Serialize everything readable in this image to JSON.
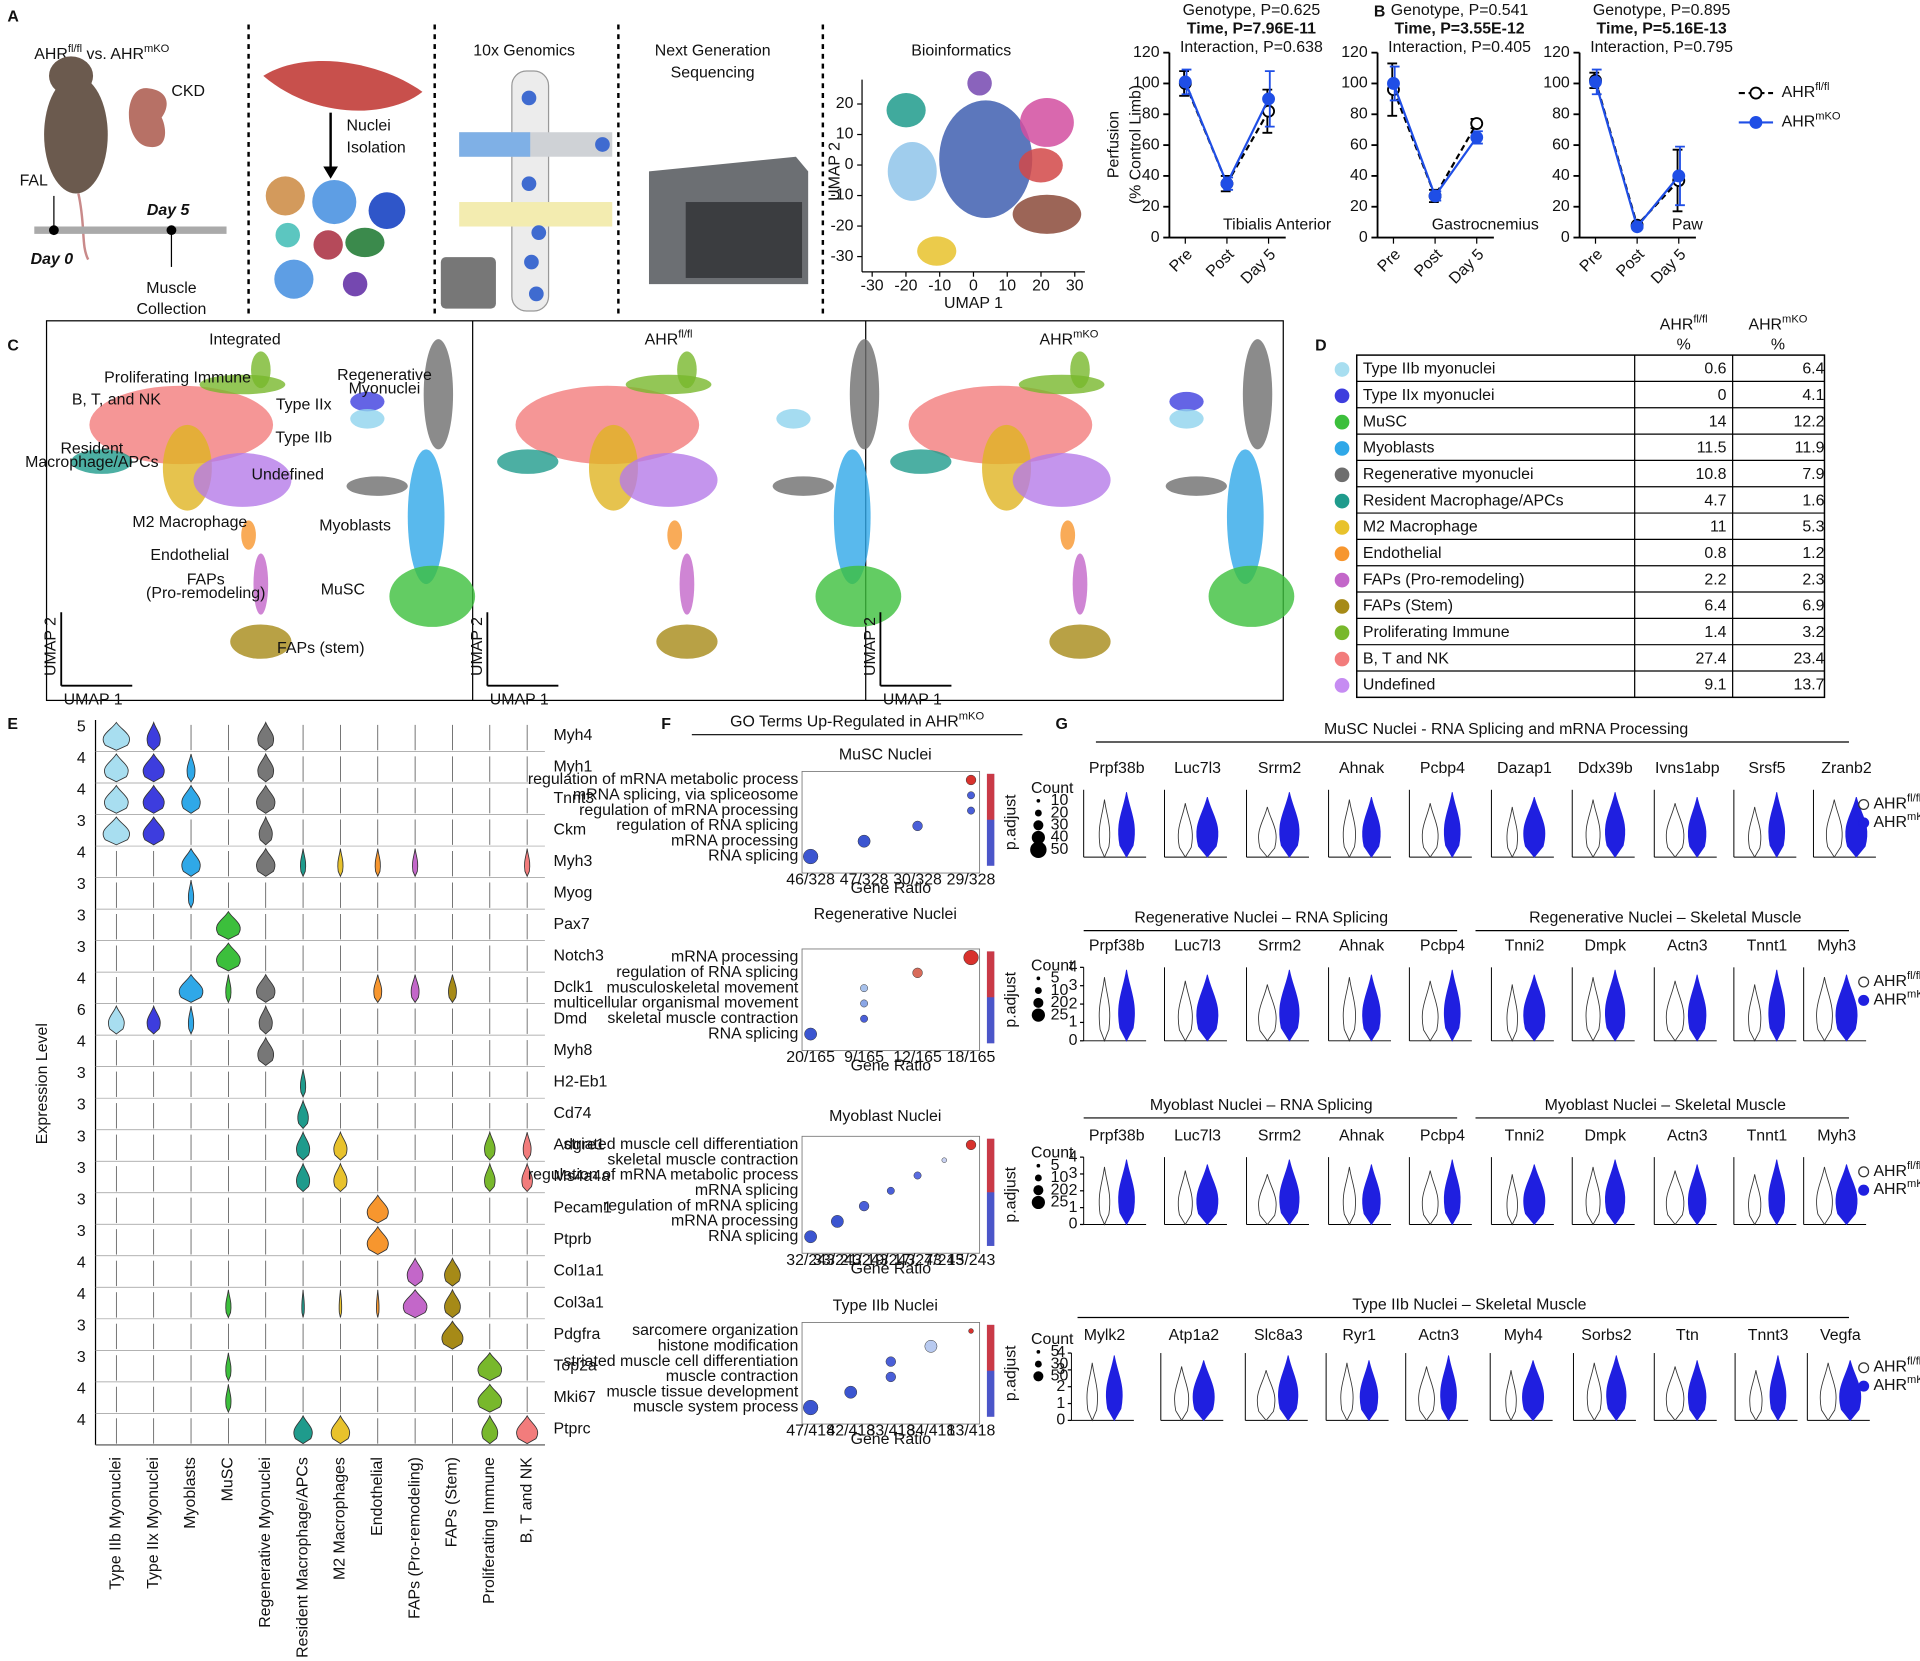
{
  "panel_labels": [
    "A",
    "B",
    "C",
    "D",
    "E",
    "F",
    "G"
  ],
  "panel_a": {
    "title": "AHRfl/fl vs. AHRmKO",
    "ckd": "CKD",
    "fal": "FAL",
    "day5": "Day 5",
    "day0": "Day 0",
    "collection": [
      "Muscle",
      "Collection"
    ],
    "isolation": [
      "Nuclei",
      "Isolation"
    ],
    "genomics": "10x Genomics",
    "sequencing": [
      "Next Generation",
      "Sequencing"
    ],
    "bioinformatics": "Bioinformatics",
    "umap": {
      "x_label": "UMAP 1",
      "y_label": "UMAP 2",
      "xlim": [
        -33,
        33
      ],
      "xticks": [
        -30,
        -20,
        -10,
        0,
        10,
        20,
        30
      ],
      "ylim": [
        -35,
        28
      ],
      "yticks": [
        -30,
        -20,
        -10,
        0,
        10,
        20
      ]
    }
  },
  "chart_data": [
    {
      "type": "line",
      "title": [
        "Genotype, P=0.625",
        "Time, P=7.96E-11",
        "Interaction, P=0.638"
      ],
      "y_label": [
        "Perfusion",
        "(% Control Limb)"
      ],
      "annotation": "Tibialis Anterior",
      "categories": [
        "Pre",
        "Post",
        "Day 5"
      ],
      "ylim": [
        0,
        120
      ],
      "yticks": [
        0,
        20,
        40,
        60,
        80,
        100,
        120
      ],
      "series": [
        {
          "color": "#000000",
          "line_style": "dashed",
          "values": [
            100,
            35,
            82
          ],
          "errors": [
            8,
            5,
            14
          ]
        },
        {
          "color": "#1f4ee6",
          "line_style": "solid",
          "values": [
            101,
            35,
            90
          ],
          "errors": [
            8,
            4,
            18
          ]
        }
      ]
    },
    {
      "type": "line",
      "title": [
        "Genotype, P=0.541",
        "Time, P=3.55E-12",
        "Interaction, P=0.405"
      ],
      "annotation": "Gastrocnemius",
      "categories": [
        "Pre",
        "Post",
        "Day 5"
      ],
      "ylim": [
        0,
        120
      ],
      "yticks": [
        0,
        20,
        40,
        60,
        80,
        100,
        120
      ],
      "series": [
        {
          "color": "#000000",
          "line_style": "dashed",
          "values": [
            96,
            27,
            74
          ],
          "errors": [
            17,
            4,
            3
          ]
        },
        {
          "color": "#1f4ee6",
          "line_style": "solid",
          "values": [
            100,
            27,
            65
          ],
          "errors": [
            11,
            3,
            4
          ]
        }
      ]
    },
    {
      "type": "line",
      "title": [
        "Genotype, P=0.895",
        "Time, P=5.16E-13",
        "Interaction, P=0.795"
      ],
      "annotation": "Paw",
      "categories": [
        "Pre",
        "Post",
        "Day 5"
      ],
      "ylim": [
        0,
        120
      ],
      "yticks": [
        0,
        20,
        40,
        60,
        80,
        100,
        120
      ],
      "legend": "right",
      "series": [
        {
          "name": "AHRfl/fl",
          "color": "#000000",
          "line_style": "dashed",
          "values": [
            102,
            8,
            37
          ],
          "errors": [
            5,
            1,
            20
          ]
        },
        {
          "name": "AHRmKO",
          "color": "#1f4ee6",
          "line_style": "solid",
          "values": [
            101,
            7,
            40
          ],
          "errors": [
            8,
            1,
            19
          ]
        }
      ]
    }
  ],
  "panel_c": {
    "titles": [
      "Integrated",
      "AHRfl/fl",
      "AHRmKO"
    ],
    "x_label": "UMAP 1",
    "y_label": "UMAP 2",
    "clusters": [
      {
        "lines": [
          "Proliferating Immune"
        ],
        "color": "#78b82c"
      },
      {
        "lines": [
          "B, T, and NK"
        ],
        "color": "#f27c7c"
      },
      {
        "lines": [
          "Type IIx"
        ],
        "color": "#3d3dde"
      },
      {
        "lines": [
          "Type IIb"
        ],
        "color": "#8fd3ee"
      },
      {
        "lines": [
          "Regenerative",
          "Myonuclei"
        ],
        "color": "#6e6e6e"
      },
      {
        "lines": [
          "Resident",
          "Macrophage/APCs"
        ],
        "color": "#1f9b8c"
      },
      {
        "lines": [
          "M2 Macrophage"
        ],
        "color": "#e0b422"
      },
      {
        "lines": [
          "Undefined"
        ],
        "color": "#b57ae8"
      },
      {
        "lines": [
          "Myoblasts"
        ],
        "color": "#2fa8e8"
      },
      {
        "lines": [
          "Endothelial"
        ],
        "color": "#f7962e"
      },
      {
        "lines": [
          "FAPs",
          "(Pro-remodeling)"
        ],
        "color": "#c367c9"
      },
      {
        "lines": [
          "MuSC"
        ],
        "color": "#3cbf3c"
      },
      {
        "lines": [
          "FAPs (stem)"
        ],
        "color": "#a68a17"
      }
    ]
  },
  "table_d": {
    "columns": [
      {
        "name": "AHRfl/fl",
        "unit": "%"
      },
      {
        "name": "AHRmKO",
        "unit": "%"
      }
    ],
    "rows": [
      {
        "label": "Type IIb myonuclei",
        "color": "#a8def0",
        "values": [
          0.6,
          6.4
        ]
      },
      {
        "label": "Type IIx myonuclei",
        "color": "#3d3dde",
        "values": [
          0,
          4.1
        ]
      },
      {
        "label": "MuSC",
        "color": "#3cbf3c",
        "values": [
          14,
          12.2
        ]
      },
      {
        "label": "Myoblasts",
        "color": "#2fa8e8",
        "values": [
          11.5,
          11.9
        ]
      },
      {
        "label": "Regenerative myonuclei",
        "color": "#6e6e6e",
        "values": [
          10.8,
          7.9
        ]
      },
      {
        "label": "Resident Macrophage/APCs",
        "color": "#1f9b8c",
        "values": [
          4.7,
          1.6
        ]
      },
      {
        "label": "M2 Macrophage",
        "color": "#e8c22c",
        "values": [
          11,
          5.3
        ]
      },
      {
        "label": "Endothelial",
        "color": "#f7962e",
        "values": [
          0.8,
          1.2
        ]
      },
      {
        "label": "FAPs (Pro-remodeling)",
        "color": "#c367c9",
        "values": [
          2.2,
          2.3
        ]
      },
      {
        "label": "FAPs (Stem)",
        "color": "#a68a17",
        "values": [
          6.4,
          6.9
        ]
      },
      {
        "label": "Proliferating Immune",
        "color": "#78b82c",
        "values": [
          1.4,
          3.2
        ]
      },
      {
        "label": "B, T and NK",
        "color": "#f27c7c",
        "values": [
          27.4,
          23.4
        ]
      },
      {
        "label": "Undefined",
        "color": "#c68cf2",
        "values": [
          9.1,
          13.7
        ]
      }
    ]
  },
  "panel_e": {
    "y_label": "Expression Level",
    "genes": [
      {
        "name": "Myh4",
        "max": 5
      },
      {
        "name": "Myh1",
        "max": 4
      },
      {
        "name": "Tnnt3",
        "max": 4
      },
      {
        "name": "Ckm",
        "max": 3
      },
      {
        "name": "Myh3",
        "max": 4
      },
      {
        "name": "Myog",
        "max": 3
      },
      {
        "name": "Pax7",
        "max": 3
      },
      {
        "name": "Notch3",
        "max": 3
      },
      {
        "name": "Dclk1",
        "max": 4
      },
      {
        "name": "Dmd",
        "max": 6
      },
      {
        "name": "Myh8",
        "max": 4
      },
      {
        "name": "H2-Eb1",
        "max": 3
      },
      {
        "name": "Cd74",
        "max": 3
      },
      {
        "name": "Adgre1",
        "max": 3
      },
      {
        "name": "Ms4a4a",
        "max": 3
      },
      {
        "name": "Pecam1",
        "max": 3
      },
      {
        "name": "Ptprb",
        "max": 3
      },
      {
        "name": "Col1a1",
        "max": 4
      },
      {
        "name": "Col3a1",
        "max": 4
      },
      {
        "name": "Pdgfra",
        "max": 3
      },
      {
        "name": "Top2a",
        "max": 3
      },
      {
        "name": "Mki67",
        "max": 4
      },
      {
        "name": "Ptprc",
        "max": 4
      }
    ],
    "cell_types": [
      {
        "name": "Type IIb Myonuclei",
        "color": "#a8def0"
      },
      {
        "name": "Type IIx Myonuclei",
        "color": "#3d3dde"
      },
      {
        "name": "Myoblasts",
        "color": "#2fa8e8"
      },
      {
        "name": "MuSC",
        "color": "#3cbf3c"
      },
      {
        "name": "Regenerative Myonuclei",
        "color": "#777777"
      },
      {
        "name": "Resident Macrophage/APCs",
        "color": "#1f9b8c"
      },
      {
        "name": "M2 Macrophages",
        "color": "#e8c22c"
      },
      {
        "name": "Endothelial",
        "color": "#f7962e"
      },
      {
        "name": "FAPs (Pro-remodeling)",
        "color": "#c367c9"
      },
      {
        "name": "FAPs (Stem)",
        "color": "#a68a17"
      },
      {
        "name": "Proliferating Immune",
        "color": "#78b82c"
      },
      {
        "name": "B, T and NK",
        "color": "#f27c7c"
      }
    ]
  },
  "panel_f": {
    "title": "GO Terms Up-Regulated in AHRmKO",
    "x_label": "Gene Ratio",
    "legend_title": "Count",
    "colorbar_title": "p.adjust",
    "plots": [
      {
        "title": "MuSC Nuclei",
        "terms": [
          "regulation of mRNA metabolic process",
          "mRNA splicing, via spliceosome",
          "regulation of mRNA processing",
          "regulation of RNA splicing",
          "mRNA processing",
          "RNA splicing"
        ],
        "xticks": [
          "46/328",
          "47/328",
          "30/328",
          "29/328"
        ],
        "sizes": [
          10,
          20,
          30,
          40,
          50
        ]
      },
      {
        "title": "Regenerative Nuclei",
        "terms": [
          "mRNA processing",
          "regulation of RNA splicing",
          "musculoskeletal movement",
          "multicellular organismal movement",
          "skeletal muscle contraction",
          "RNA splicing"
        ],
        "xticks": [
          "20/165",
          "9/165",
          "12/165",
          "18/165"
        ],
        "sizes": [
          5,
          10,
          20,
          25
        ]
      },
      {
        "title": "Myoblast Nuclei",
        "terms": [
          "striated muscle cell differentiation",
          "skeletal muscle contraction",
          "regulation of mRNA metabolic process",
          "mRNA splicing",
          "regulation of mRNA splicing",
          "mRNA processing",
          "RNA splicing"
        ],
        "xticks": [
          "32/243",
          "33/243",
          "21/243",
          "19/243",
          "17/243",
          "7/243",
          "15/243"
        ],
        "sizes": [
          5,
          10,
          20,
          25
        ]
      },
      {
        "title": "Type IIb Nuclei",
        "terms": [
          "sarcomere organization",
          "histone modification",
          "striated muscle cell differentiation",
          "muscle contraction",
          "muscle tissue development",
          "muscle system process"
        ],
        "xticks": [
          "47/418",
          "42/418",
          "33/418",
          "34/418",
          "13/418"
        ],
        "sizes": [
          5,
          30,
          50
        ]
      }
    ]
  },
  "panel_g": {
    "legend": [
      "AHRfl/fl",
      "AHRmKO"
    ],
    "yticks": [
      0,
      1,
      2,
      3,
      4
    ],
    "rows": [
      {
        "titles": [
          "MuSC Nuclei - RNA Splicing and mRNA Processing"
        ],
        "genes": [
          "Prpf38b",
          "Luc7l3",
          "Srrm2",
          "Ahnak",
          "Pcbp4",
          "Dazap1",
          "Ddx39b",
          "Ivns1abp",
          "Srsf5",
          "Zranb2"
        ]
      },
      {
        "titles": [
          "Regenerative Nuclei – RNA Splicing",
          "Regenerative Nuclei – Skeletal Muscle"
        ],
        "genes": [
          "Prpf38b",
          "Luc7l3",
          "Srrm2",
          "Ahnak",
          "Pcbp4",
          "Tnni2",
          "Dmpk",
          "Actn3",
          "Tnnt1",
          "Myh3"
        ]
      },
      {
        "titles": [
          "Myoblast Nuclei – RNA Splicing",
          "Myoblast Nuclei – Skeletal Muscle"
        ],
        "genes": [
          "Prpf38b",
          "Luc7l3",
          "Srrm2",
          "Ahnak",
          "Pcbp4",
          "Tnni2",
          "Dmpk",
          "Actn3",
          "Tnnt1",
          "Myh3"
        ]
      },
      {
        "titles": [
          "Type IIb Nuclei – Skeletal Muscle"
        ],
        "genes": [
          "Mylk2",
          "Atp1a2",
          "Slc8a3",
          "Ryr1",
          "Actn3",
          "Myh4",
          "Sorbs2",
          "Ttn",
          "Tnnt3",
          "Vegfa"
        ]
      }
    ]
  }
}
